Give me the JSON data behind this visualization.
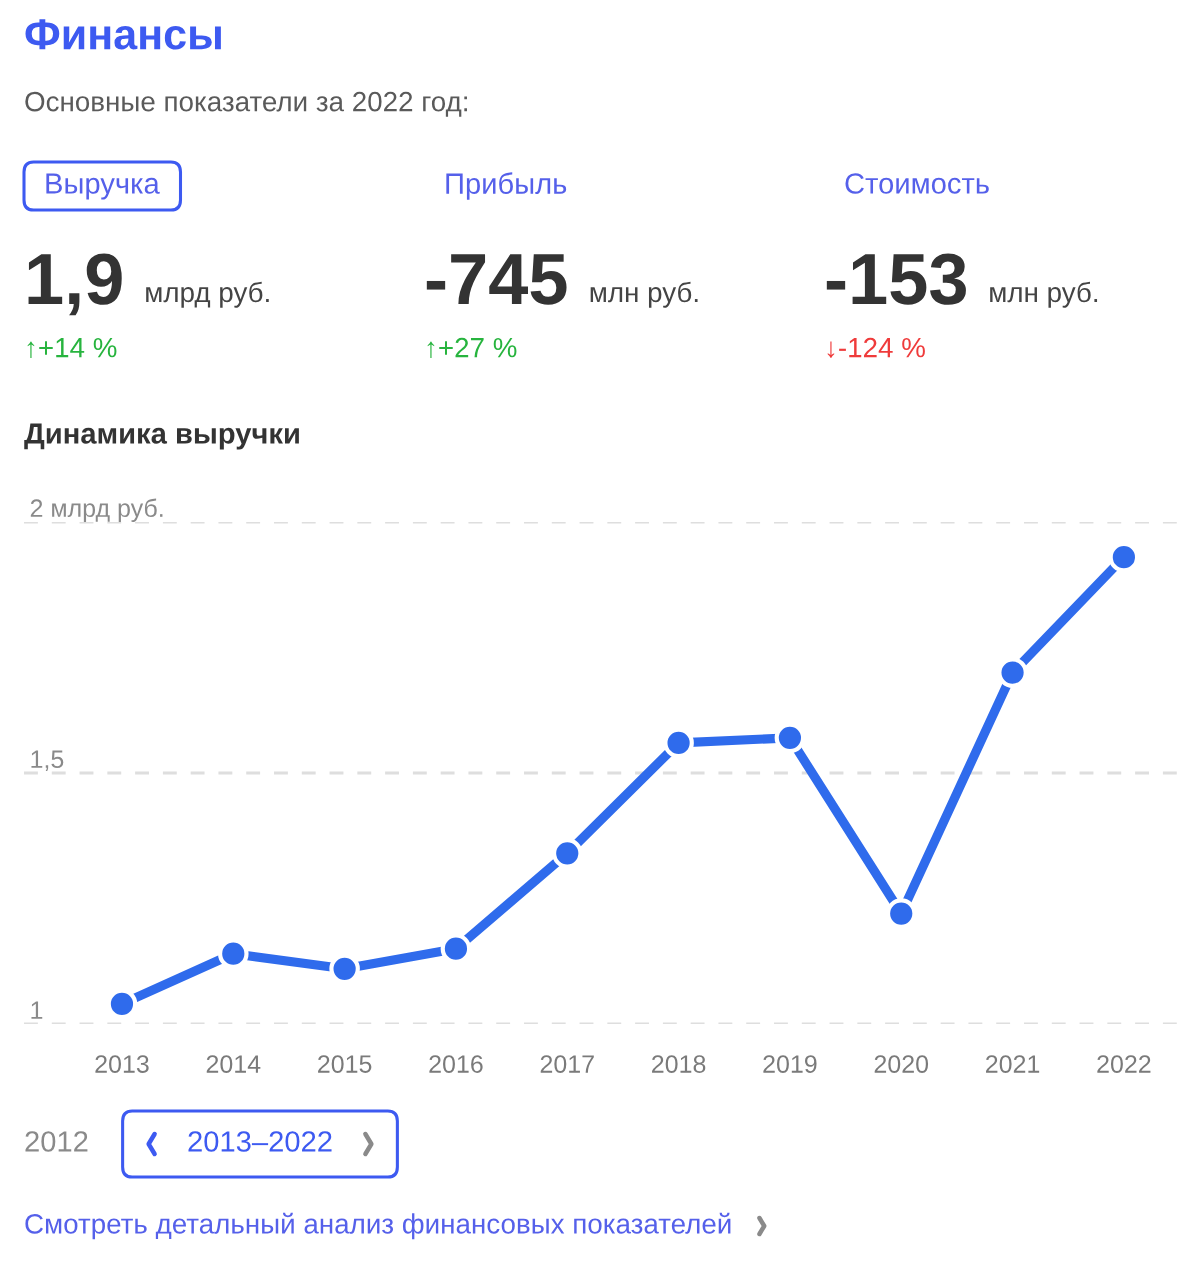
{
  "chart_data": [
    {
      "type": "other",
      "title": "Финансы",
      "subtitle": "Основные показатели за 2022 год:",
      "annotations": [
        "Выручка",
        "1,9",
        "млрд руб.",
        "↑+14 %",
        "Прибыль",
        "-745",
        "млн руб.",
        "↑+27 %",
        "Стоимость",
        "-153",
        "млн руб.",
        "↓-124 %"
      ]
    },
    {
      "type": "line",
      "title": "Динамика выручки",
      "categories": [
        "2013",
        "2014",
        "2015",
        "2016",
        "2017",
        "2018",
        "2019",
        "2020",
        "2021",
        "2022"
      ],
      "series": [
        {
          "color": "#2f6bec",
          "values": [
            1.04,
            1.14,
            1.11,
            1.15,
            1.34,
            1.56,
            1.57,
            1.22,
            1.7,
            1.93
          ]
        }
      ],
      "ylim": [
        1,
        2
      ],
      "yticks": [
        1,
        {
          "value": 1.5,
          "label": "1,5"
        },
        {
          "value": 2,
          "label": "2 млрд руб."
        }
      ],
      "grid": "y",
      "marker": "circle",
      "line_style": "solid",
      "annotations": [
        "2012",
        "2013–2022",
        "Смотреть детальный анализ финансовых показателей"
      ]
    }
  ]
}
